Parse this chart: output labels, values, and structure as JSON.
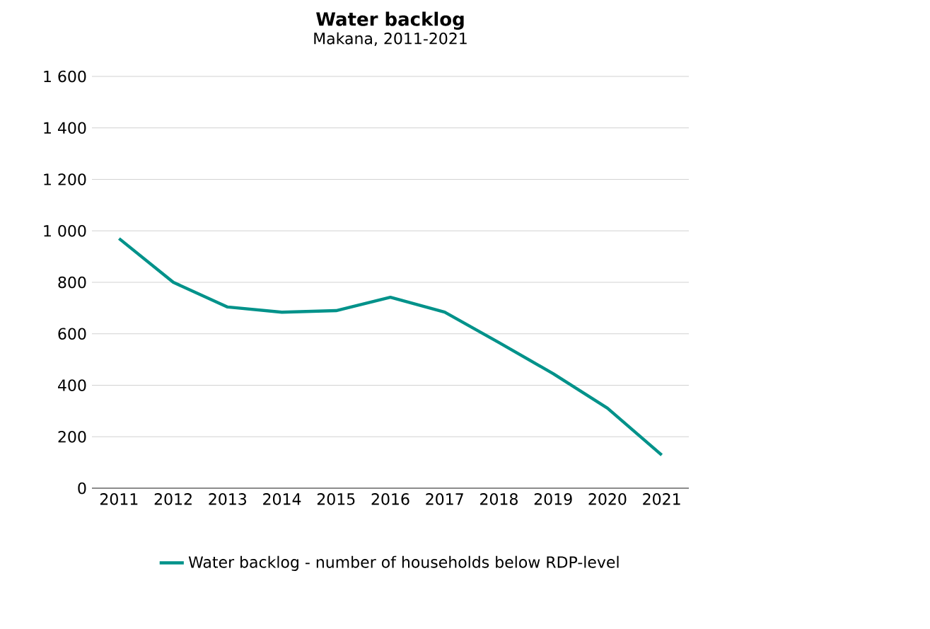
{
  "chart_data": {
    "type": "line",
    "title": "Water backlog",
    "subtitle": "Makana, 2011-2021",
    "categories": [
      "2011",
      "2012",
      "2013",
      "2014",
      "2015",
      "2016",
      "2017",
      "2018",
      "2019",
      "2020",
      "2021"
    ],
    "series": [
      {
        "name": "Water backlog - number of households below RDP-level",
        "color": "#00928a",
        "values": [
          970,
          800,
          704,
          684,
          690,
          742,
          684,
          566,
          445,
          311,
          129
        ]
      }
    ],
    "ylim": [
      0,
      1600
    ],
    "yticks": [
      {
        "value": 0,
        "label": "0"
      },
      {
        "value": 200,
        "label": "200"
      },
      {
        "value": 400,
        "label": "400"
      },
      {
        "value": 600,
        "label": "600"
      },
      {
        "value": 800,
        "label": "800"
      },
      {
        "value": 1000,
        "label": "1 000"
      },
      {
        "value": 1200,
        "label": "1 200"
      },
      {
        "value": 1400,
        "label": "1 400"
      },
      {
        "value": 1600,
        "label": "1 600"
      }
    ],
    "grid": "y",
    "legend": "bottom",
    "marker": "none",
    "line_style": "solid"
  }
}
